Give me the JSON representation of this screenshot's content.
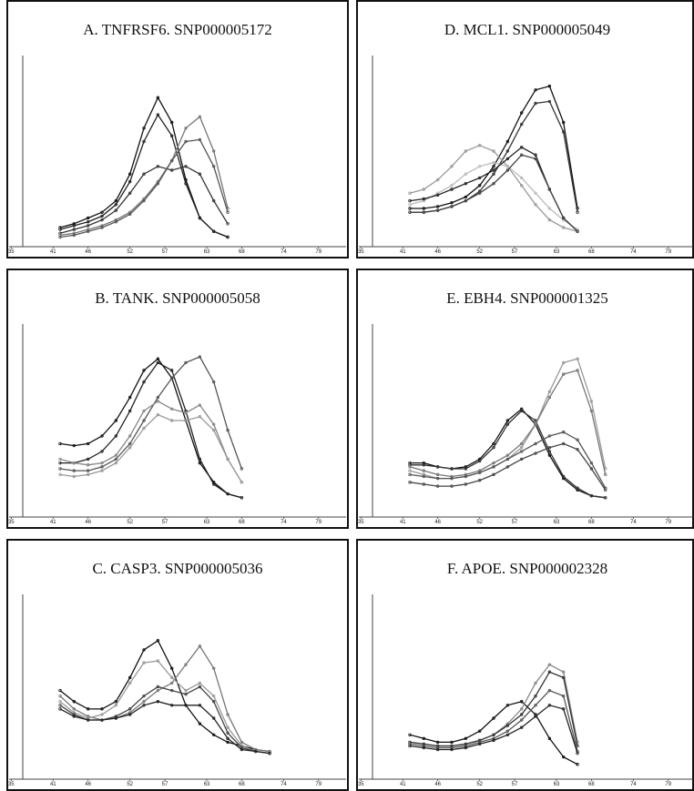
{
  "chart_data": [
    {
      "type": "line",
      "title": "A. TNFRSF6. SNP000005172",
      "xlim": [
        34.7,
        81.9
      ],
      "ylim": [
        0,
        100
      ],
      "xticks": [
        35,
        41,
        46,
        52,
        57,
        63,
        68,
        74,
        79
      ],
      "x": [
        42,
        44,
        46,
        48,
        50,
        52,
        54,
        56,
        58,
        60,
        62,
        64,
        66
      ],
      "series": [
        {
          "color": "#111111",
          "values": [
            10,
            12,
            15,
            18,
            24,
            38,
            62,
            78,
            65,
            35,
            15,
            8,
            5
          ]
        },
        {
          "color": "#222222",
          "values": [
            9,
            11,
            13,
            16,
            22,
            34,
            55,
            69,
            58,
            33,
            15,
            8,
            5
          ]
        },
        {
          "color": "#333333",
          "values": [
            7,
            9,
            11,
            14,
            19,
            28,
            38,
            42,
            40,
            42,
            38,
            24,
            12
          ]
        },
        {
          "color": "#777777",
          "values": [
            6,
            7,
            9,
            11,
            14,
            18,
            25,
            34,
            45,
            62,
            68,
            50,
            20
          ]
        },
        {
          "color": "#555555",
          "values": [
            5,
            6,
            8,
            10,
            13,
            17,
            24,
            33,
            45,
            55,
            56,
            42,
            18
          ]
        }
      ]
    },
    {
      "type": "line",
      "title": "B. TANK. SNP000005058",
      "xlim": [
        34.7,
        81.9
      ],
      "ylim": [
        0,
        100
      ],
      "xticks": [
        35,
        41,
        46,
        52,
        57,
        63,
        68,
        74,
        79
      ],
      "x": [
        42,
        44,
        46,
        48,
        50,
        52,
        54,
        56,
        58,
        60,
        62,
        64,
        66,
        68
      ],
      "series": [
        {
          "color": "#111111",
          "values": [
            38,
            37,
            38,
            42,
            50,
            62,
            76,
            82,
            72,
            50,
            28,
            18,
            12,
            10
          ]
        },
        {
          "color": "#222222",
          "values": [
            28,
            28,
            30,
            34,
            42,
            55,
            70,
            80,
            76,
            55,
            30,
            17,
            12,
            10
          ]
        },
        {
          "color": "#555555",
          "values": [
            25,
            24,
            24,
            26,
            30,
            38,
            50,
            62,
            72,
            80,
            83,
            70,
            45,
            25
          ]
        },
        {
          "color": "#888888",
          "values": [
            30,
            28,
            27,
            28,
            32,
            42,
            55,
            60,
            56,
            54,
            58,
            48,
            30,
            18
          ]
        },
        {
          "color": "#999999",
          "values": [
            22,
            21,
            22,
            24,
            28,
            36,
            46,
            53,
            50,
            50,
            52,
            45,
            30,
            18
          ]
        }
      ]
    },
    {
      "type": "line",
      "title": "C. CASP3. SNP000005036",
      "xlim": [
        34.7,
        81.9
      ],
      "ylim": [
        0,
        100
      ],
      "xticks": [
        35,
        41,
        46,
        52,
        57,
        63,
        68,
        74,
        79
      ],
      "x": [
        42,
        44,
        46,
        48,
        50,
        52,
        54,
        56,
        58,
        60,
        62,
        64,
        66,
        68,
        70,
        72
      ],
      "series": [
        {
          "color": "#111111",
          "values": [
            48,
            42,
            38,
            38,
            42,
            55,
            70,
            75,
            60,
            40,
            30,
            24,
            20,
            18,
            16,
            15
          ]
        },
        {
          "color": "#777777",
          "values": [
            45,
            38,
            34,
            32,
            33,
            36,
            42,
            48,
            52,
            62,
            72,
            60,
            35,
            20,
            16,
            15
          ]
        },
        {
          "color": "#999999",
          "values": [
            42,
            36,
            33,
            35,
            40,
            52,
            63,
            64,
            55,
            48,
            52,
            45,
            28,
            18,
            15,
            14
          ]
        },
        {
          "color": "#444444",
          "values": [
            40,
            35,
            32,
            32,
            34,
            38,
            45,
            50,
            48,
            46,
            50,
            42,
            25,
            17,
            15,
            14
          ]
        },
        {
          "color": "#222222",
          "values": [
            38,
            34,
            32,
            32,
            33,
            35,
            40,
            42,
            40,
            40,
            40,
            33,
            22,
            16,
            15,
            14
          ]
        }
      ]
    },
    {
      "type": "line",
      "title": "D. MCL1. SNP000005049",
      "xlim": [
        34.7,
        81.9
      ],
      "ylim": [
        0,
        100
      ],
      "xticks": [
        35,
        41,
        46,
        52,
        57,
        63,
        68,
        74,
        79
      ],
      "x": [
        42,
        44,
        46,
        48,
        50,
        52,
        54,
        56,
        58,
        60,
        62,
        64,
        66
      ],
      "series": [
        {
          "color": "#111111",
          "values": [
            20,
            20,
            21,
            23,
            26,
            32,
            42,
            55,
            70,
            82,
            84,
            65,
            20
          ]
        },
        {
          "color": "#333333",
          "values": [
            18,
            18,
            19,
            21,
            24,
            29,
            38,
            50,
            64,
            75,
            76,
            60,
            18
          ]
        },
        {
          "color": "#999999",
          "values": [
            28,
            30,
            35,
            42,
            50,
            53,
            50,
            42,
            32,
            22,
            14,
            10,
            8
          ]
        },
        {
          "color": "#bbbbbb",
          "values": [
            22,
            24,
            28,
            32,
            38,
            42,
            44,
            42,
            36,
            28,
            20,
            14,
            9
          ]
        },
        {
          "color": "#222222",
          "values": [
            24,
            25,
            27,
            30,
            33,
            36,
            40,
            46,
            52,
            48,
            30,
            15,
            8
          ]
        },
        {
          "color": "#444444",
          "values": [
            18,
            18,
            19,
            21,
            24,
            28,
            33,
            40,
            48,
            46,
            30,
            15,
            8
          ]
        }
      ]
    },
    {
      "type": "line",
      "title": "E. EBH4. SNP000001325",
      "xlim": [
        34.7,
        81.9
      ],
      "ylim": [
        0,
        100
      ],
      "xticks": [
        35,
        41,
        46,
        52,
        57,
        63,
        68,
        74,
        79
      ],
      "x": [
        42,
        44,
        46,
        48,
        50,
        52,
        54,
        56,
        58,
        60,
        62,
        64,
        66,
        68,
        70
      ],
      "series": [
        {
          "color": "#111111",
          "values": [
            28,
            28,
            26,
            25,
            26,
            30,
            38,
            50,
            56,
            48,
            32,
            20,
            14,
            11,
            10
          ]
        },
        {
          "color": "#333333",
          "values": [
            27,
            27,
            26,
            25,
            25,
            29,
            36,
            48,
            55,
            50,
            34,
            21,
            15,
            11,
            10
          ]
        },
        {
          "color": "#999999",
          "values": [
            24,
            22,
            20,
            20,
            21,
            23,
            26,
            30,
            36,
            48,
            65,
            80,
            82,
            60,
            25
          ]
        },
        {
          "color": "#777777",
          "values": [
            26,
            24,
            22,
            21,
            22,
            24,
            28,
            32,
            38,
            48,
            62,
            74,
            76,
            55,
            22
          ]
        },
        {
          "color": "#555555",
          "values": [
            22,
            21,
            20,
            20,
            21,
            23,
            26,
            30,
            34,
            38,
            42,
            44,
            40,
            28,
            15
          ]
        },
        {
          "color": "#444444",
          "values": [
            18,
            17,
            16,
            16,
            17,
            19,
            22,
            26,
            30,
            33,
            36,
            38,
            35,
            25,
            14
          ]
        }
      ]
    },
    {
      "type": "line",
      "title": "F. APOE. SNP000002328",
      "xlim": [
        34.7,
        81.9
      ],
      "ylim": [
        0,
        100
      ],
      "xticks": [
        35,
        41,
        46,
        52,
        57,
        63,
        68,
        74,
        79
      ],
      "x": [
        42,
        44,
        46,
        48,
        50,
        52,
        54,
        56,
        58,
        60,
        62,
        64,
        66
      ],
      "series": [
        {
          "color": "#111111",
          "values": [
            24,
            22,
            20,
            20,
            22,
            26,
            33,
            40,
            42,
            35,
            22,
            12,
            8
          ]
        },
        {
          "color": "#888888",
          "values": [
            20,
            19,
            18,
            18,
            19,
            21,
            24,
            30,
            38,
            52,
            62,
            58,
            20
          ]
        },
        {
          "color": "#333333",
          "values": [
            20,
            19,
            18,
            18,
            19,
            21,
            24,
            29,
            35,
            45,
            58,
            55,
            18
          ]
        },
        {
          "color": "#555555",
          "values": [
            19,
            18,
            17,
            17,
            18,
            20,
            22,
            26,
            32,
            40,
            48,
            45,
            15
          ]
        },
        {
          "color": "#222222",
          "values": [
            18,
            17,
            16,
            16,
            17,
            19,
            21,
            24,
            28,
            34,
            40,
            38,
            14
          ]
        }
      ]
    }
  ]
}
